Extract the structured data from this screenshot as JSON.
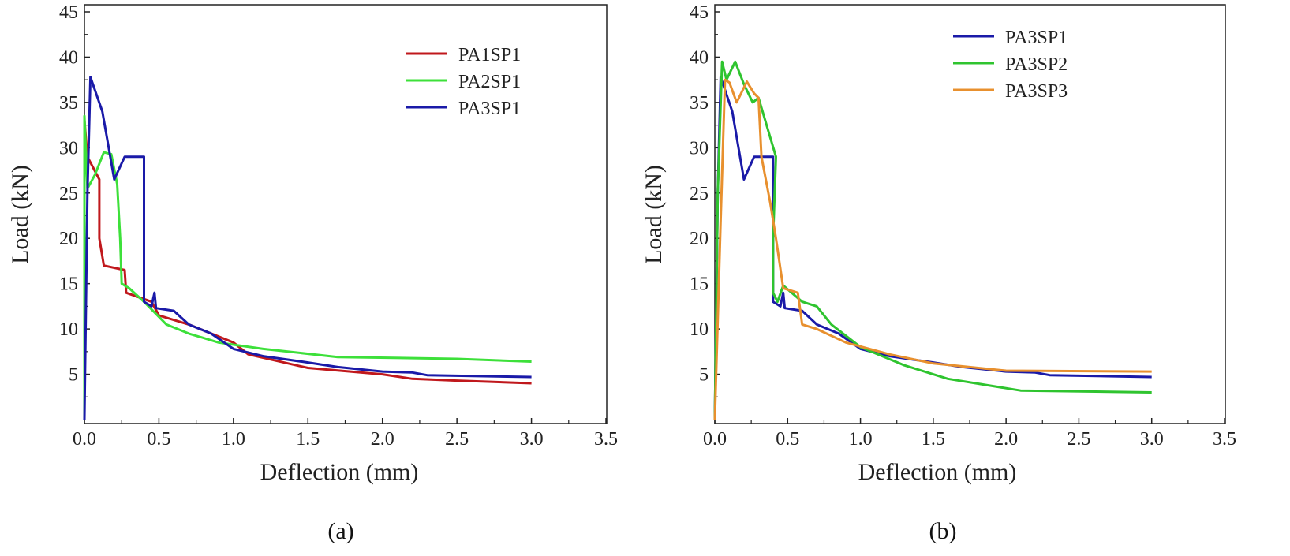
{
  "chart_data": [
    {
      "type": "line",
      "caption": "(a)",
      "xlabel": "Deflection (mm)",
      "ylabel": "Load (kN)",
      "xlim": [
        0,
        3.5
      ],
      "ylim": [
        0,
        45
      ],
      "xticks": [
        "0.0",
        "0.5",
        "1.0",
        "1.5",
        "2.0",
        "2.5",
        "3.0",
        "3.5"
      ],
      "yticks": [
        "5",
        "10",
        "15",
        "20",
        "25",
        "30",
        "35",
        "40",
        "45"
      ],
      "legend_position": "top-right",
      "series": [
        {
          "name": "PA1SP1",
          "color": "#c0181c",
          "points": [
            [
              0,
              0
            ],
            [
              0,
              33
            ],
            [
              0.02,
              29
            ],
            [
              0.1,
              26.5
            ],
            [
              0.1,
              20
            ],
            [
              0.13,
              17
            ],
            [
              0.27,
              16.5
            ],
            [
              0.28,
              14
            ],
            [
              0.45,
              13
            ],
            [
              0.5,
              11.5
            ],
            [
              0.7,
              10.5
            ],
            [
              1.0,
              8.5
            ],
            [
              1.1,
              7.2
            ],
            [
              1.5,
              5.7
            ],
            [
              2.0,
              5.0
            ],
            [
              2.2,
              4.5
            ],
            [
              2.5,
              4.3
            ],
            [
              3.0,
              4.0
            ]
          ]
        },
        {
          "name": "PA2SP1",
          "color": "#3de03a",
          "points": [
            [
              0,
              0
            ],
            [
              0,
              33.5
            ],
            [
              0.02,
              25.5
            ],
            [
              0.07,
              27
            ],
            [
              0.13,
              29.5
            ],
            [
              0.18,
              29.3
            ],
            [
              0.22,
              26
            ],
            [
              0.24,
              20
            ],
            [
              0.25,
              15
            ],
            [
              0.3,
              14.5
            ],
            [
              0.4,
              13
            ],
            [
              0.55,
              10.5
            ],
            [
              0.7,
              9.5
            ],
            [
              0.9,
              8.5
            ],
            [
              1.2,
              7.8
            ],
            [
              1.7,
              6.9
            ],
            [
              2.5,
              6.7
            ],
            [
              3.0,
              6.4
            ]
          ]
        },
        {
          "name": "PA3SP1",
          "color": "#1a1aa8",
          "points": [
            [
              0,
              0
            ],
            [
              0.02,
              25
            ],
            [
              0.04,
              37.8
            ],
            [
              0.12,
              34
            ],
            [
              0.2,
              26.5
            ],
            [
              0.27,
              29
            ],
            [
              0.4,
              29
            ],
            [
              0.4,
              13
            ],
            [
              0.45,
              12.5
            ],
            [
              0.47,
              14
            ],
            [
              0.48,
              12.3
            ],
            [
              0.6,
              12
            ],
            [
              0.7,
              10.5
            ],
            [
              0.85,
              9.5
            ],
            [
              1.0,
              7.8
            ],
            [
              1.2,
              7
            ],
            [
              1.5,
              6.3
            ],
            [
              1.7,
              5.8
            ],
            [
              2.0,
              5.3
            ],
            [
              2.2,
              5.2
            ],
            [
              2.3,
              4.9
            ],
            [
              3.0,
              4.7
            ]
          ]
        }
      ]
    },
    {
      "type": "line",
      "caption": "(b)",
      "xlabel": "Deflection (mm)",
      "ylabel": "Load (kN)",
      "xlim": [
        0,
        3.5
      ],
      "ylim": [
        0,
        45
      ],
      "xticks": [
        "0.0",
        "0.5",
        "1.0",
        "1.5",
        "2.0",
        "2.5",
        "3.0",
        "3.5"
      ],
      "yticks": [
        "5",
        "10",
        "15",
        "20",
        "25",
        "30",
        "35",
        "40",
        "45"
      ],
      "legend_position": "top-right",
      "series": [
        {
          "name": "PA3SP1",
          "color": "#1a1aa8",
          "points": [
            [
              0,
              0
            ],
            [
              0.02,
              25
            ],
            [
              0.04,
              37.8
            ],
            [
              0.12,
              34
            ],
            [
              0.2,
              26.5
            ],
            [
              0.27,
              29
            ],
            [
              0.4,
              29
            ],
            [
              0.4,
              13
            ],
            [
              0.45,
              12.5
            ],
            [
              0.47,
              14
            ],
            [
              0.48,
              12.3
            ],
            [
              0.6,
              12
            ],
            [
              0.7,
              10.5
            ],
            [
              0.85,
              9.5
            ],
            [
              1.0,
              7.8
            ],
            [
              1.2,
              7
            ],
            [
              1.5,
              6.3
            ],
            [
              1.7,
              5.8
            ],
            [
              2.0,
              5.3
            ],
            [
              2.2,
              5.2
            ],
            [
              2.3,
              4.9
            ],
            [
              3.0,
              4.7
            ]
          ]
        },
        {
          "name": "PA3SP2",
          "color": "#2fc42f",
          "points": [
            [
              0,
              0
            ],
            [
              0.02,
              25
            ],
            [
              0.05,
              39.5
            ],
            [
              0.08,
              37.5
            ],
            [
              0.14,
              39.5
            ],
            [
              0.2,
              37
            ],
            [
              0.26,
              35
            ],
            [
              0.3,
              35.5
            ],
            [
              0.42,
              29
            ],
            [
              0.4,
              20
            ],
            [
              0.4,
              14
            ],
            [
              0.43,
              13
            ],
            [
              0.47,
              14.8
            ],
            [
              0.6,
              13
            ],
            [
              0.7,
              12.5
            ],
            [
              0.8,
              10.5
            ],
            [
              1.0,
              8
            ],
            [
              1.3,
              6
            ],
            [
              1.6,
              4.5
            ],
            [
              2.1,
              3.2
            ],
            [
              3.0,
              3.0
            ]
          ]
        },
        {
          "name": "PA3SP3",
          "color": "#e8902e",
          "points": [
            [
              0,
              0
            ],
            [
              0.04,
              22
            ],
            [
              0.07,
              37.5
            ],
            [
              0.1,
              37.2
            ],
            [
              0.15,
              35
            ],
            [
              0.22,
              37.3
            ],
            [
              0.27,
              36
            ],
            [
              0.3,
              35.5
            ],
            [
              0.32,
              29
            ],
            [
              0.38,
              24
            ],
            [
              0.42,
              20
            ],
            [
              0.47,
              14.5
            ],
            [
              0.57,
              14
            ],
            [
              0.6,
              10.5
            ],
            [
              0.7,
              10
            ],
            [
              0.9,
              8.5
            ],
            [
              1.2,
              7.2
            ],
            [
              1.5,
              6.2
            ],
            [
              2.0,
              5.4
            ],
            [
              3.0,
              5.3
            ]
          ]
        }
      ]
    }
  ]
}
